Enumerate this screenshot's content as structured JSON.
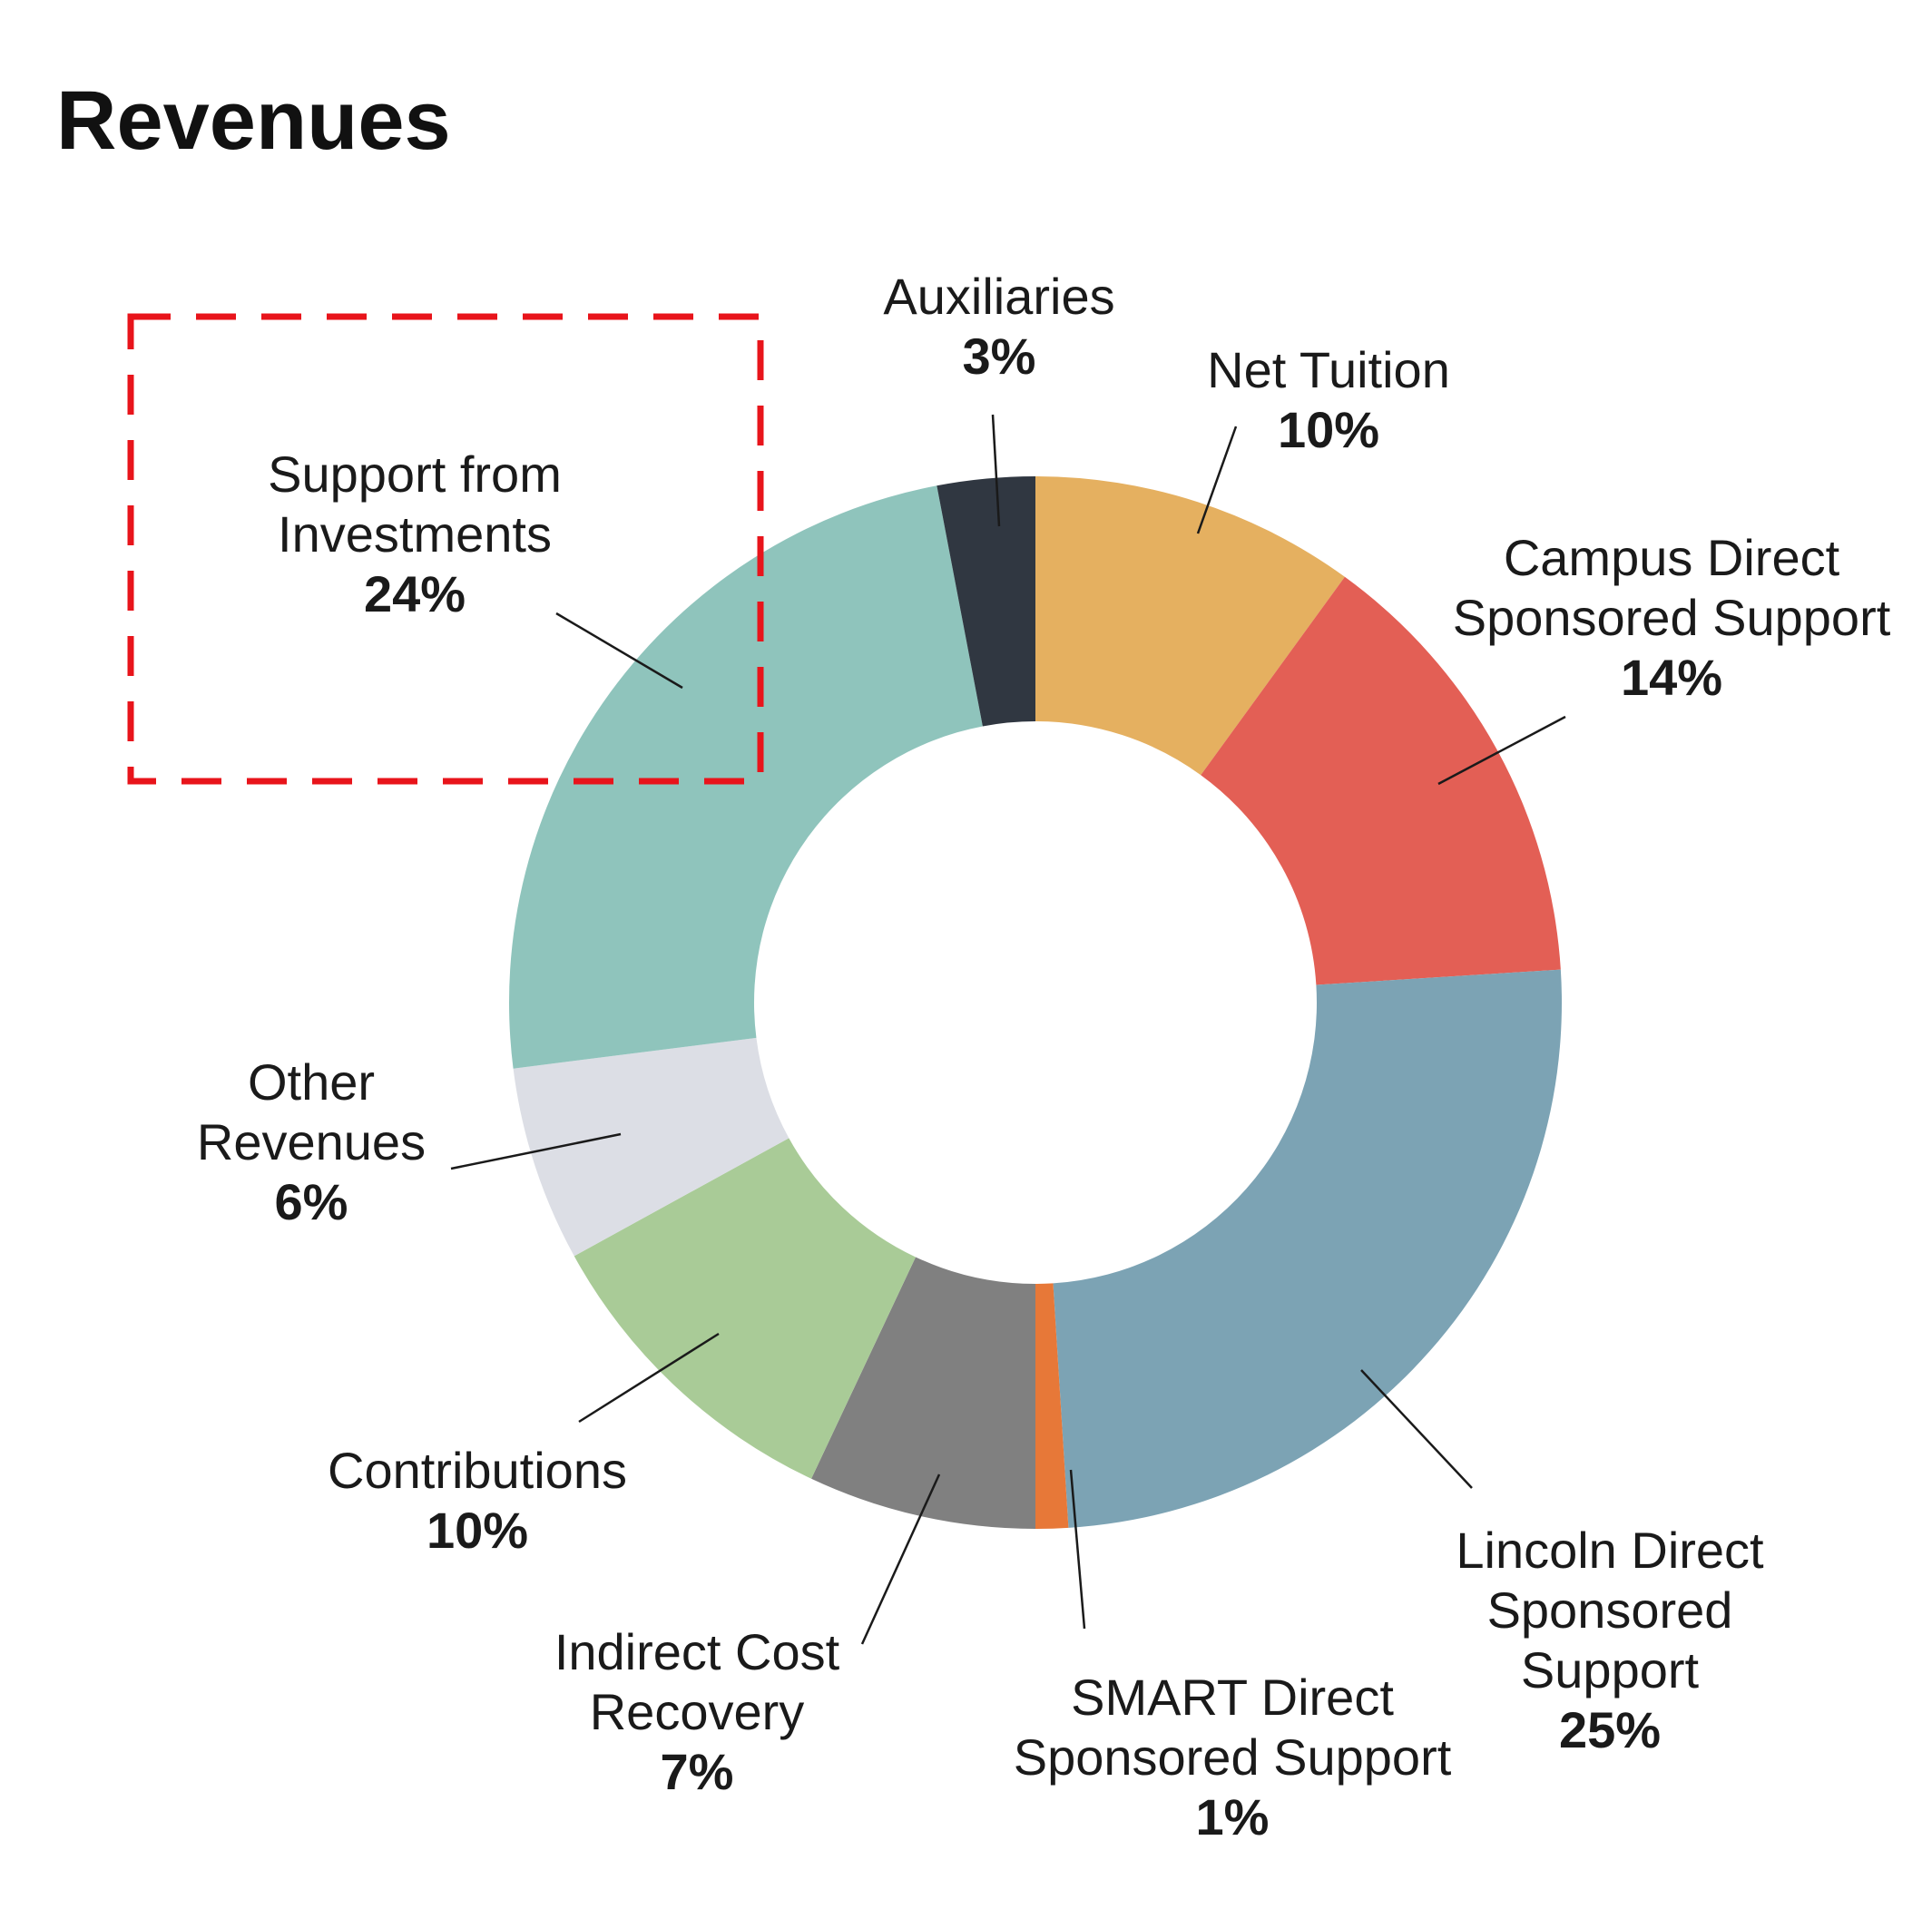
{
  "chart_data": {
    "type": "pie",
    "title": "Revenues",
    "donut": true,
    "start_angle_deg": 0,
    "direction": "clockwise",
    "slices": [
      {
        "label": "Net Tuition",
        "label_lines": [
          "Net Tuition"
        ],
        "pct_label": "10%",
        "value": 10,
        "color": "#e5b060"
      },
      {
        "label": "Campus Direct Sponsored Support",
        "label_lines": [
          "Campus Direct",
          "Sponsored Support"
        ],
        "pct_label": "14%",
        "value": 14,
        "color": "#e35f55"
      },
      {
        "label": "Lincoln Direct Sponsored Support",
        "label_lines": [
          "Lincoln Direct",
          "Sponsored",
          "Support"
        ],
        "pct_label": "25%",
        "value": 25,
        "color": "#7ca3b4"
      },
      {
        "label": "SMART Direct Sponsored Support",
        "label_lines": [
          "SMART Direct",
          "Sponsored Support"
        ],
        "pct_label": "1%",
        "value": 1,
        "color": "#e77838"
      },
      {
        "label": "Indirect Cost Recovery",
        "label_lines": [
          "Indirect Cost",
          "Recovery"
        ],
        "pct_label": "7%",
        "value": 7,
        "color": "#808080"
      },
      {
        "label": "Contributions",
        "label_lines": [
          "Contributions"
        ],
        "pct_label": "10%",
        "value": 10,
        "color": "#a9cb97"
      },
      {
        "label": "Other Revenues",
        "label_lines": [
          "Other",
          "Revenues"
        ],
        "pct_label": "6%",
        "value": 6,
        "color": "#dcdee5"
      },
      {
        "label": "Support from Investments",
        "label_lines": [
          "Support from",
          "Investments"
        ],
        "pct_label": "24%",
        "value": 24,
        "color": "#8fc4bc"
      },
      {
        "label": "Auxiliaries",
        "label_lines": [
          "Auxiliaries"
        ],
        "pct_label": "3%",
        "value": 3,
        "color": "#303741"
      }
    ],
    "highlighted_slice": "Support from Investments",
    "highlight_color": "#e8141b"
  }
}
